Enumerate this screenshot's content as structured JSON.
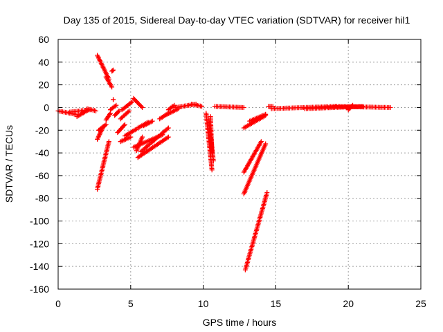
{
  "chart_data": {
    "type": "scatter",
    "title": "Day 135 of 2015, Sidereal Day-to-day VTEC variation (SDTVAR) for receiver hil1",
    "xlabel": "GPS time / hours",
    "ylabel": "SDTVAR / TECUs",
    "xlim": [
      0,
      25
    ],
    "ylim": [
      -160,
      60
    ],
    "xticks": [
      0,
      5,
      10,
      15,
      20,
      25
    ],
    "yticks": [
      -160,
      -140,
      -120,
      -100,
      -80,
      -60,
      -40,
      -20,
      0,
      20,
      40,
      60
    ],
    "grid": true,
    "marker": "+",
    "color": "#ff0000",
    "segments": [
      {
        "x": [
          0.0,
          1.2
        ],
        "y": [
          -3,
          -6
        ]
      },
      {
        "x": [
          0.8,
          2.2
        ],
        "y": [
          -4,
          -2
        ]
      },
      {
        "x": [
          1.3,
          2.1
        ],
        "y": [
          -8,
          -2
        ]
      },
      {
        "x": [
          2.0,
          2.6
        ],
        "y": [
          -1,
          -3
        ]
      },
      {
        "x": [
          2.7,
          3.5
        ],
        "y": [
          46,
          25
        ]
      },
      {
        "x": [
          3.3,
          3.7
        ],
        "y": [
          27,
          18
        ]
      },
      {
        "x": [
          3.7,
          3.8
        ],
        "y": [
          32,
          33
        ]
      },
      {
        "x": [
          3.8,
          3.8
        ],
        "y": [
          7,
          7
        ]
      },
      {
        "x": [
          2.7,
          3.5
        ],
        "y": [
          -72,
          -30
        ]
      },
      {
        "x": [
          2.7,
          3.1
        ],
        "y": [
          -28,
          -17
        ]
      },
      {
        "x": [
          2.8,
          3.3
        ],
        "y": [
          -20,
          -15
        ]
      },
      {
        "x": [
          3.3,
          3.6
        ],
        "y": [
          -11,
          -5
        ]
      },
      {
        "x": [
          3.6,
          4.0
        ],
        "y": [
          -2,
          2
        ]
      },
      {
        "x": [
          3.9,
          4.2
        ],
        "y": [
          -7,
          -3
        ]
      },
      {
        "x": [
          4.1,
          4.6
        ],
        "y": [
          -22,
          -15
        ]
      },
      {
        "x": [
          4.3,
          4.9
        ],
        "y": [
          -10,
          -3
        ]
      },
      {
        "x": [
          4.4,
          5.1
        ],
        "y": [
          -2,
          5
        ]
      },
      {
        "x": [
          4.3,
          5.0
        ],
        "y": [
          -30,
          -26
        ]
      },
      {
        "x": [
          4.6,
          5.4
        ],
        "y": [
          -25,
          -19
        ]
      },
      {
        "x": [
          5.2,
          5.8
        ],
        "y": [
          8,
          0
        ]
      },
      {
        "x": [
          5.4,
          5.8
        ],
        "y": [
          -38,
          -26
        ]
      },
      {
        "x": [
          5.7,
          7.6
        ],
        "y": [
          -39,
          -18
        ]
      },
      {
        "x": [
          5.5,
          7.6
        ],
        "y": [
          -44,
          -26
        ]
      },
      {
        "x": [
          5.2,
          7.2
        ],
        "y": [
          -35,
          -24
        ]
      },
      {
        "x": [
          5.5,
          6.2
        ],
        "y": [
          -18,
          -13
        ]
      },
      {
        "x": [
          5.9,
          6.5
        ],
        "y": [
          -16,
          -12
        ]
      },
      {
        "x": [
          7.0,
          7.6
        ],
        "y": [
          -10,
          -5
        ]
      },
      {
        "x": [
          7.5,
          8.3
        ],
        "y": [
          -6,
          -1
        ]
      },
      {
        "x": [
          7.6,
          8.0
        ],
        "y": [
          -2,
          2
        ]
      },
      {
        "x": [
          8.1,
          9.5
        ],
        "y": [
          0,
          3
        ]
      },
      {
        "x": [
          9.2,
          9.9
        ],
        "y": [
          3,
          1
        ]
      },
      {
        "x": [
          10.2,
          10.6
        ],
        "y": [
          -5,
          -55
        ]
      },
      {
        "x": [
          10.4,
          10.7
        ],
        "y": [
          -12,
          -47
        ]
      },
      {
        "x": [
          10.5,
          10.6
        ],
        "y": [
          -8,
          -40
        ]
      },
      {
        "x": [
          10.8,
          12.8
        ],
        "y": [
          1,
          0
        ]
      },
      {
        "x": [
          12.8,
          14.3
        ],
        "y": [
          -18,
          -7
        ]
      },
      {
        "x": [
          13.2,
          14.3
        ],
        "y": [
          -12,
          -6
        ]
      },
      {
        "x": [
          12.8,
          14.0
        ],
        "y": [
          -57,
          -30
        ]
      },
      {
        "x": [
          12.8,
          14.3
        ],
        "y": [
          -76,
          -32
        ]
      },
      {
        "x": [
          12.9,
          14.4
        ],
        "y": [
          -143,
          -75
        ]
      },
      {
        "x": [
          14.5,
          14.8
        ],
        "y": [
          1,
          1
        ]
      },
      {
        "x": [
          14.7,
          19.2
        ],
        "y": [
          -1,
          1
        ]
      },
      {
        "x": [
          17.0,
          21.0
        ],
        "y": [
          -1,
          1
        ]
      },
      {
        "x": [
          19.0,
          22.9
        ],
        "y": [
          1,
          0
        ]
      },
      {
        "x": [
          20.0,
          20.3
        ],
        "y": [
          -2,
          2
        ]
      }
    ]
  }
}
